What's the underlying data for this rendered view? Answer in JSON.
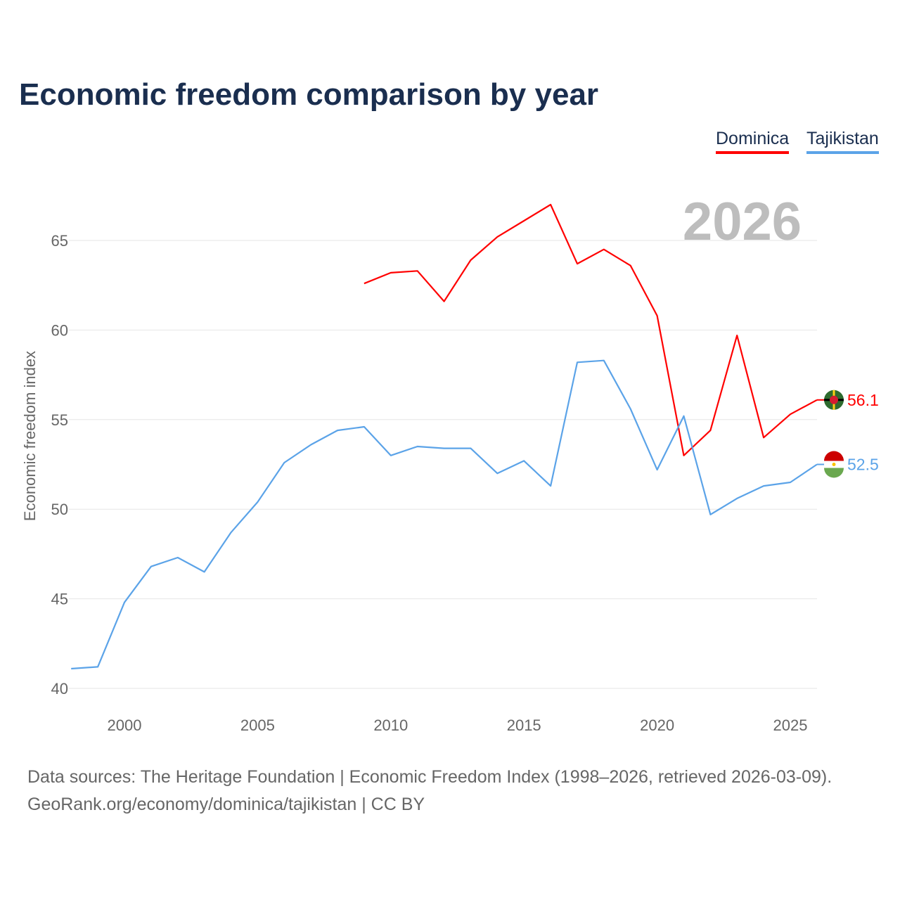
{
  "title": "Economic freedom comparison by year",
  "year_watermark": "2026",
  "source_line1": "Data sources: The Heritage Foundation | Economic Freedom Index (1998–2026, retrieved 2026-03-09).",
  "source_line2": "GeoRank.org/economy/dominica/tajikistan | CC BY",
  "chart_data": {
    "type": "line",
    "title": "Economic freedom comparison by year",
    "xlabel": "",
    "ylabel": "Economic freedom index",
    "xlim": [
      1998,
      2026
    ],
    "ylim": [
      40,
      67.5
    ],
    "x_ticks": [
      2000,
      2005,
      2010,
      2015,
      2020,
      2025
    ],
    "y_ticks": [
      40,
      45,
      50,
      55,
      60,
      65
    ],
    "grid": true,
    "legend": "top-right",
    "series": [
      {
        "name": "Dominica",
        "color": "#ff0000",
        "end_label": "56.1",
        "x": [
          2009,
          2010,
          2011,
          2012,
          2013,
          2014,
          2015,
          2016,
          2017,
          2018,
          2019,
          2020,
          2021,
          2022,
          2023,
          2024,
          2025,
          2026
        ],
        "values": [
          62.6,
          63.2,
          63.3,
          61.6,
          63.9,
          65.2,
          66.1,
          67.0,
          63.7,
          64.5,
          63.6,
          60.8,
          53.0,
          54.4,
          59.7,
          54.0,
          55.3,
          56.1
        ]
      },
      {
        "name": "Tajikistan",
        "color": "#5ba3e8",
        "end_label": "52.5",
        "x": [
          1998,
          1999,
          2000,
          2001,
          2002,
          2003,
          2004,
          2005,
          2006,
          2007,
          2008,
          2009,
          2010,
          2011,
          2012,
          2013,
          2014,
          2015,
          2016,
          2017,
          2018,
          2019,
          2020,
          2021,
          2022,
          2023,
          2024,
          2025,
          2026
        ],
        "values": [
          41.1,
          41.2,
          44.8,
          46.8,
          47.3,
          46.5,
          48.7,
          50.4,
          52.6,
          53.6,
          54.4,
          54.6,
          53.0,
          53.5,
          53.4,
          53.4,
          52.0,
          52.7,
          51.3,
          58.2,
          58.3,
          55.6,
          52.2,
          55.2,
          49.7,
          50.6,
          51.3,
          51.5,
          52.5
        ]
      }
    ]
  }
}
